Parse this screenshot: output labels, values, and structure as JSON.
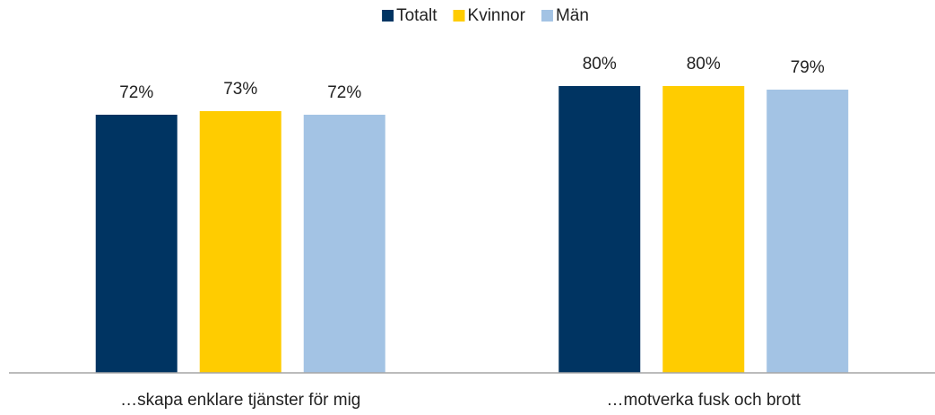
{
  "chart_data": {
    "type": "bar",
    "categories": [
      "…skapa enklare tjänster för mig",
      "…motverka fusk och brott"
    ],
    "series": [
      {
        "name": "Totalt",
        "color": "#003462",
        "values": [
          72,
          80
        ],
        "value_labels": [
          "72%",
          "80%"
        ]
      },
      {
        "name": "Kvinnor",
        "color": "#ffcc00",
        "values": [
          73,
          80
        ],
        "value_labels": [
          "73%",
          "80%"
        ]
      },
      {
        "name": "Män",
        "color": "#a3c3e4",
        "values": [
          72,
          79
        ],
        "value_labels": [
          "72%",
          "79%"
        ]
      }
    ],
    "ylim": [
      0,
      100
    ],
    "legend": "top"
  }
}
